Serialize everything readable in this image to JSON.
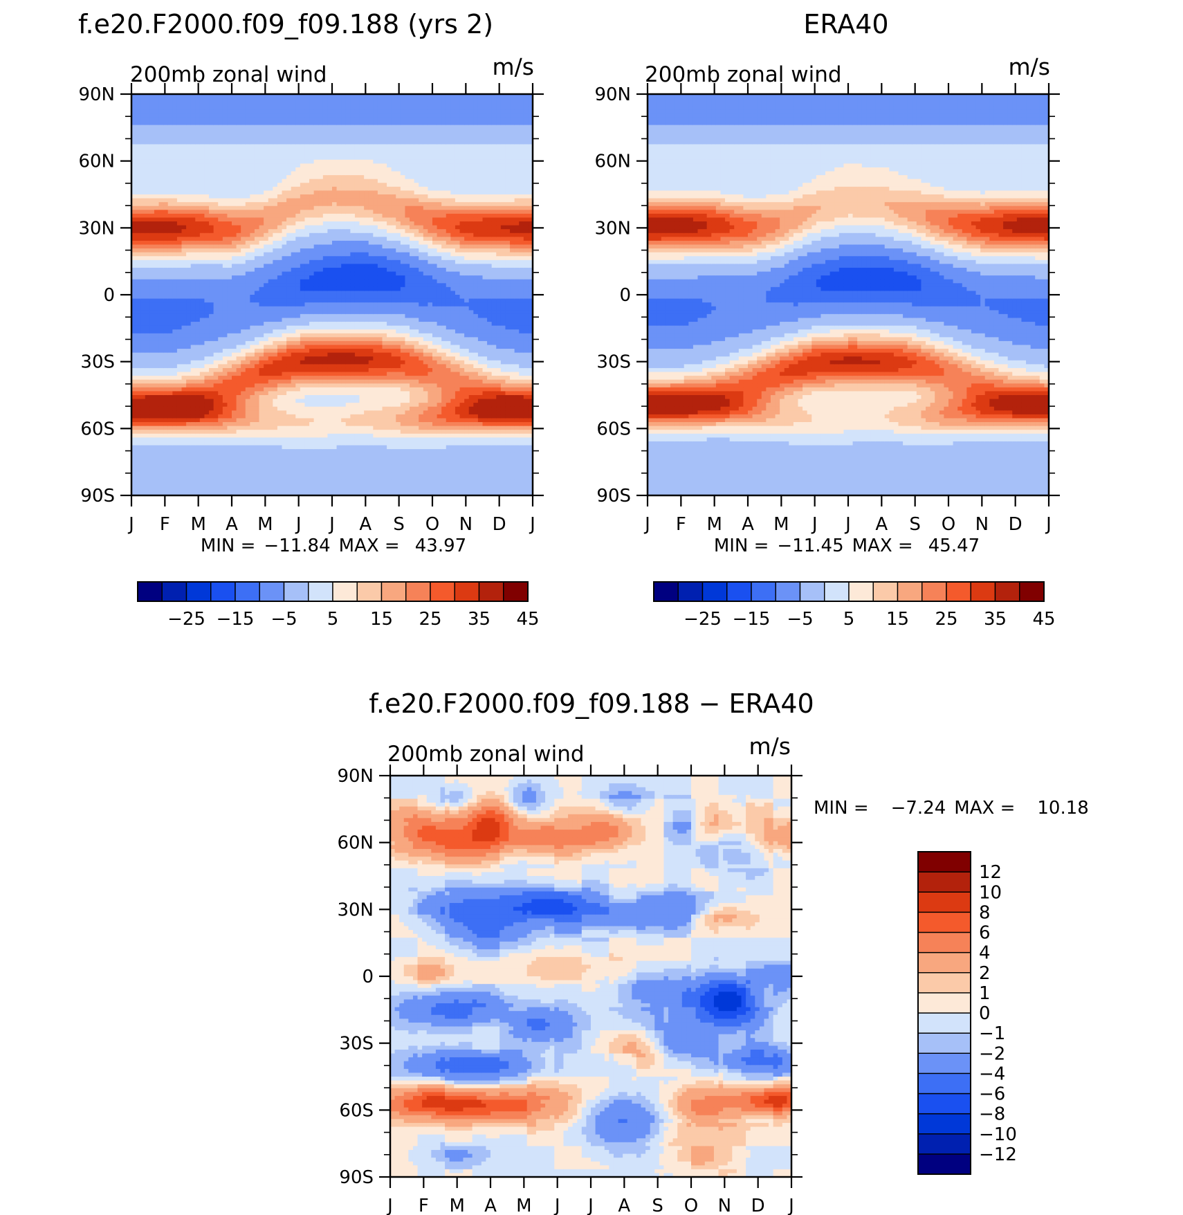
{
  "chart_data": [
    {
      "type": "heatmap",
      "title": "f.e20.F2000.f09_f09.188 (yrs 2)",
      "subtitle": "200mb zonal wind",
      "units": "m/s",
      "x_tick_labels": [
        "J",
        "F",
        "M",
        "A",
        "M",
        "J",
        "J",
        "A",
        "S",
        "O",
        "N",
        "D",
        "J"
      ],
      "y_tick_labels": [
        "90N",
        "60N",
        "30N",
        "0",
        "30S",
        "60S",
        "90S"
      ],
      "y_tick_values": [
        90,
        60,
        30,
        0,
        -30,
        -60,
        -90
      ],
      "ylim": [
        -90,
        90
      ],
      "stats": {
        "min_label": "MIN =",
        "min": "−11.84",
        "max_label": "MAX =",
        "max": "43.97"
      },
      "colorbar": {
        "orientation": "horizontal",
        "levels": [
          -30,
          -25,
          -20,
          -15,
          -10,
          -5,
          0,
          5,
          10,
          15,
          20,
          25,
          30,
          35,
          40,
          45
        ],
        "tick_labels": [
          "−25",
          "−15",
          "−5",
          "5",
          "15",
          "25",
          "35",
          "45"
        ],
        "colors": [
          "#000080",
          "#0020b0",
          "#0038d8",
          "#1a50f0",
          "#3d6ff5",
          "#6b92f7",
          "#a6c0f8",
          "#d2e3fb",
          "#fde9d8",
          "#fbcaa9",
          "#f8a77f",
          "#f68258",
          "#f45a2c",
          "#dc3a12",
          "#b3220c",
          "#800000"
        ]
      },
      "jets": {
        "nh_subtropical": {
          "month": [
            1,
            2,
            3,
            4,
            5,
            6,
            7,
            8,
            9,
            10,
            11,
            12,
            13
          ],
          "lat": [
            30,
            30,
            30,
            29,
            33,
            40,
            43,
            42,
            38,
            33,
            30,
            30,
            30
          ],
          "speed": [
            42,
            43,
            38,
            32,
            25,
            21,
            20,
            21,
            24,
            30,
            37,
            40,
            42
          ]
        },
        "sh_subtropical": {
          "month": [
            1,
            2,
            3,
            4,
            5,
            6,
            7,
            8,
            9,
            10,
            11,
            12,
            13
          ],
          "lat": [
            -48,
            -48,
            -45,
            -40,
            -34,
            -30,
            -29,
            -29,
            -30,
            -34,
            -40,
            -45,
            -48
          ],
          "speed": [
            20,
            22,
            26,
            31,
            36,
            40,
            42,
            41,
            36,
            30,
            26,
            23,
            20
          ]
        },
        "sh_polar": {
          "month": [
            1,
            2,
            3,
            4,
            5,
            6,
            7,
            8,
            9,
            10,
            11,
            12,
            13
          ],
          "lat": [
            -52,
            -52,
            -53,
            -55,
            -56,
            -57,
            -57,
            -56,
            -56,
            -55,
            -54,
            -53,
            -52
          ],
          "speed": [
            32,
            31,
            28,
            22,
            17,
            15,
            14,
            16,
            20,
            27,
            31,
            33,
            32
          ]
        },
        "tropical_easterly": {
          "month": [
            1,
            2,
            3,
            4,
            5,
            6,
            7,
            8,
            9,
            10,
            11,
            12,
            13
          ],
          "lat": [
            -10,
            -10,
            -7,
            -4,
            0,
            4,
            7,
            8,
            6,
            2,
            -4,
            -8,
            -10
          ],
          "speed": [
            -6,
            -6,
            -4,
            -2,
            -4,
            -8,
            -11,
            -12,
            -9,
            -5,
            -3,
            -5,
            -6
          ]
        }
      }
    },
    {
      "type": "heatmap",
      "title": "ERA40",
      "subtitle": "200mb zonal wind",
      "units": "m/s",
      "x_tick_labels": [
        "J",
        "F",
        "M",
        "A",
        "M",
        "J",
        "J",
        "A",
        "S",
        "O",
        "N",
        "D",
        "J"
      ],
      "y_tick_labels": [
        "90N",
        "60N",
        "30N",
        "0",
        "30S",
        "60S",
        "90S"
      ],
      "y_tick_values": [
        90,
        60,
        30,
        0,
        -30,
        -60,
        -90
      ],
      "ylim": [
        -90,
        90
      ],
      "stats": {
        "min_label": "MIN =",
        "min": "−11.45",
        "max_label": "MAX =",
        "max": "45.47"
      },
      "colorbar": {
        "orientation": "horizontal",
        "levels": [
          -30,
          -25,
          -20,
          -15,
          -10,
          -5,
          0,
          5,
          10,
          15,
          20,
          25,
          30,
          35,
          40,
          45
        ],
        "tick_labels": [
          "−25",
          "−15",
          "−5",
          "5",
          "15",
          "25",
          "35",
          "45"
        ],
        "colors": [
          "#000080",
          "#0020b0",
          "#0038d8",
          "#1a50f0",
          "#3d6ff5",
          "#6b92f7",
          "#a6c0f8",
          "#d2e3fb",
          "#fde9d8",
          "#fbcaa9",
          "#f8a77f",
          "#f68258",
          "#f45a2c",
          "#dc3a12",
          "#b3220c",
          "#800000"
        ]
      },
      "jets": {
        "nh_subtropical": {
          "month": [
            1,
            2,
            3,
            4,
            5,
            6,
            7,
            8,
            9,
            10,
            11,
            12,
            13
          ],
          "lat": [
            31,
            31,
            31,
            30,
            32,
            38,
            41,
            40,
            37,
            33,
            31,
            31,
            31
          ],
          "speed": [
            45,
            44,
            39,
            32,
            25,
            20,
            18,
            19,
            23,
            30,
            37,
            42,
            45
          ]
        },
        "sh_subtropical": {
          "month": [
            1,
            2,
            3,
            4,
            5,
            6,
            7,
            8,
            9,
            10,
            11,
            12,
            13
          ],
          "lat": [
            -47,
            -47,
            -44,
            -40,
            -35,
            -31,
            -30,
            -30,
            -31,
            -35,
            -40,
            -44,
            -47
          ],
          "speed": [
            20,
            21,
            25,
            30,
            35,
            39,
            41,
            40,
            35,
            29,
            25,
            22,
            20
          ]
        },
        "sh_polar": {
          "month": [
            1,
            2,
            3,
            4,
            5,
            6,
            7,
            8,
            9,
            10,
            11,
            12,
            13
          ],
          "lat": [
            -50,
            -50,
            -51,
            -53,
            -55,
            -56,
            -56,
            -55,
            -55,
            -54,
            -52,
            -51,
            -50
          ],
          "speed": [
            28,
            27,
            24,
            20,
            16,
            14,
            13,
            14,
            18,
            24,
            27,
            29,
            28
          ]
        },
        "tropical_easterly": {
          "month": [
            1,
            2,
            3,
            4,
            5,
            6,
            7,
            8,
            9,
            10,
            11,
            12,
            13
          ],
          "lat": [
            -8,
            -8,
            -6,
            -3,
            1,
            5,
            7,
            7,
            5,
            1,
            -3,
            -6,
            -8
          ],
          "speed": [
            -5,
            -5,
            -3,
            -2,
            -4,
            -8,
            -11,
            -11,
            -9,
            -5,
            -3,
            -4,
            -5
          ]
        }
      }
    },
    {
      "type": "heatmap",
      "title": "f.e20.F2000.f09_f09.188 − ERA40",
      "subtitle": "200mb zonal wind",
      "units": "m/s",
      "x_tick_labels": [
        "J",
        "F",
        "M",
        "A",
        "M",
        "J",
        "J",
        "A",
        "S",
        "O",
        "N",
        "D",
        "J"
      ],
      "y_tick_labels": [
        "90N",
        "60N",
        "30N",
        "0",
        "30S",
        "60S",
        "90S"
      ],
      "y_tick_values": [
        90,
        60,
        30,
        0,
        -30,
        -60,
        -90
      ],
      "ylim": [
        -90,
        90
      ],
      "stats": {
        "min_label": "MIN =",
        "min": "−7.24",
        "max_label": "MAX =",
        "max": "10.18"
      },
      "colorbar": {
        "orientation": "vertical",
        "levels": [
          -14,
          -12,
          -10,
          -8,
          -6,
          -4,
          -2,
          -1,
          0,
          1,
          2,
          4,
          6,
          8,
          10,
          12,
          14
        ],
        "tick_labels": [
          "−12",
          "−10",
          "−8",
          "−6",
          "−4",
          "−2",
          "−1",
          "0",
          "1",
          "2",
          "4",
          "6",
          "8",
          "10",
          "12"
        ],
        "colors": [
          "#000080",
          "#0020b0",
          "#0038d8",
          "#1a50f0",
          "#3d6ff5",
          "#6b92f7",
          "#a6c0f8",
          "#d2e3fb",
          "#fde9d8",
          "#fbcaa9",
          "#f8a77f",
          "#f68258",
          "#f45a2c",
          "#dc3a12",
          "#b3220c",
          "#800000"
        ]
      },
      "features": [
        {
          "month": 2.0,
          "lat": 65,
          "amp": 6,
          "wx": 1.2,
          "wy": 10
        },
        {
          "month": 4.0,
          "lat": 68,
          "amp": 8,
          "wx": 0.7,
          "wy": 10
        },
        {
          "month": 3.2,
          "lat": 58,
          "amp": 4,
          "wx": 1.0,
          "wy": 8
        },
        {
          "month": 5.8,
          "lat": 62,
          "amp": 5,
          "wx": 1.4,
          "wy": 8
        },
        {
          "month": 7.5,
          "lat": 66,
          "amp": 4,
          "wx": 0.8,
          "wy": 8
        },
        {
          "month": 13.0,
          "lat": 62,
          "amp": 4,
          "wx": 1.2,
          "wy": 10
        },
        {
          "month": 10.8,
          "lat": 70,
          "amp": 2,
          "wx": 0.8,
          "wy": 8
        },
        {
          "month": 3.0,
          "lat": 80,
          "amp": -2.5,
          "wx": 0.6,
          "wy": 6
        },
        {
          "month": 5.0,
          "lat": 80,
          "amp": -3,
          "wx": 0.6,
          "wy": 8
        },
        {
          "month": 8.0,
          "lat": 78,
          "amp": -2.5,
          "wx": 0.8,
          "wy": 7
        },
        {
          "month": 9.8,
          "lat": 70,
          "amp": -2.5,
          "wx": 0.5,
          "wy": 8
        },
        {
          "month": 11.5,
          "lat": 55,
          "amp": -2.5,
          "wx": 1.2,
          "wy": 10
        },
        {
          "month": 3.5,
          "lat": 30,
          "amp": -5,
          "wx": 1.6,
          "wy": 9
        },
        {
          "month": 5.8,
          "lat": 32,
          "amp": -5,
          "wx": 1.2,
          "wy": 8
        },
        {
          "month": 7.5,
          "lat": 27,
          "amp": -3.5,
          "wx": 1.4,
          "wy": 8
        },
        {
          "month": 9.5,
          "lat": 30,
          "amp": -3,
          "wx": 1.2,
          "wy": 9
        },
        {
          "month": 4.2,
          "lat": 18,
          "amp": -3,
          "wx": 1.5,
          "wy": 8
        },
        {
          "month": 11.0,
          "lat": 27,
          "amp": 3,
          "wx": 0.8,
          "wy": 6
        },
        {
          "month": 2.0,
          "lat": 2,
          "amp": 2.5,
          "wx": 1.0,
          "wy": 6
        },
        {
          "month": 6.5,
          "lat": 4,
          "amp": 1.5,
          "wx": 1.5,
          "wy": 6
        },
        {
          "month": 11.0,
          "lat": -12,
          "amp": -9,
          "wx": 1.1,
          "wy": 12
        },
        {
          "month": 12.8,
          "lat": 0,
          "amp": -3,
          "wx": 0.7,
          "wy": 7
        },
        {
          "month": 8.8,
          "lat": -7,
          "amp": -3,
          "wx": 0.9,
          "wy": 8
        },
        {
          "month": 3.0,
          "lat": -15,
          "amp": -5,
          "wx": 1.6,
          "wy": 8
        },
        {
          "month": 5.5,
          "lat": -22,
          "amp": -4,
          "wx": 1.0,
          "wy": 8
        },
        {
          "month": 3.5,
          "lat": -40,
          "amp": -6,
          "wx": 1.8,
          "wy": 7
        },
        {
          "month": 12.0,
          "lat": -38,
          "amp": -5,
          "wx": 1.2,
          "wy": 7
        },
        {
          "month": 9.5,
          "lat": -28,
          "amp": -3,
          "wx": 0.9,
          "wy": 10
        },
        {
          "month": 8.5,
          "lat": -33,
          "amp": 2.5,
          "wx": 0.8,
          "wy": 8
        },
        {
          "month": 2.5,
          "lat": -57,
          "amp": 9,
          "wx": 1.7,
          "wy": 7
        },
        {
          "month": 5.0,
          "lat": -58,
          "amp": 5,
          "wx": 1.4,
          "wy": 8
        },
        {
          "month": 10.5,
          "lat": -57,
          "amp": 5,
          "wx": 1.2,
          "wy": 10
        },
        {
          "month": 12.5,
          "lat": -56,
          "amp": 9,
          "wx": 1.0,
          "wy": 6
        },
        {
          "month": 8.0,
          "lat": -66,
          "amp": -4,
          "wx": 1.2,
          "wy": 12
        },
        {
          "month": 3.0,
          "lat": -80,
          "amp": -2,
          "wx": 1.0,
          "wy": 6
        },
        {
          "month": 10.0,
          "lat": -80,
          "amp": 2,
          "wx": 1.2,
          "wy": 8
        }
      ]
    }
  ]
}
